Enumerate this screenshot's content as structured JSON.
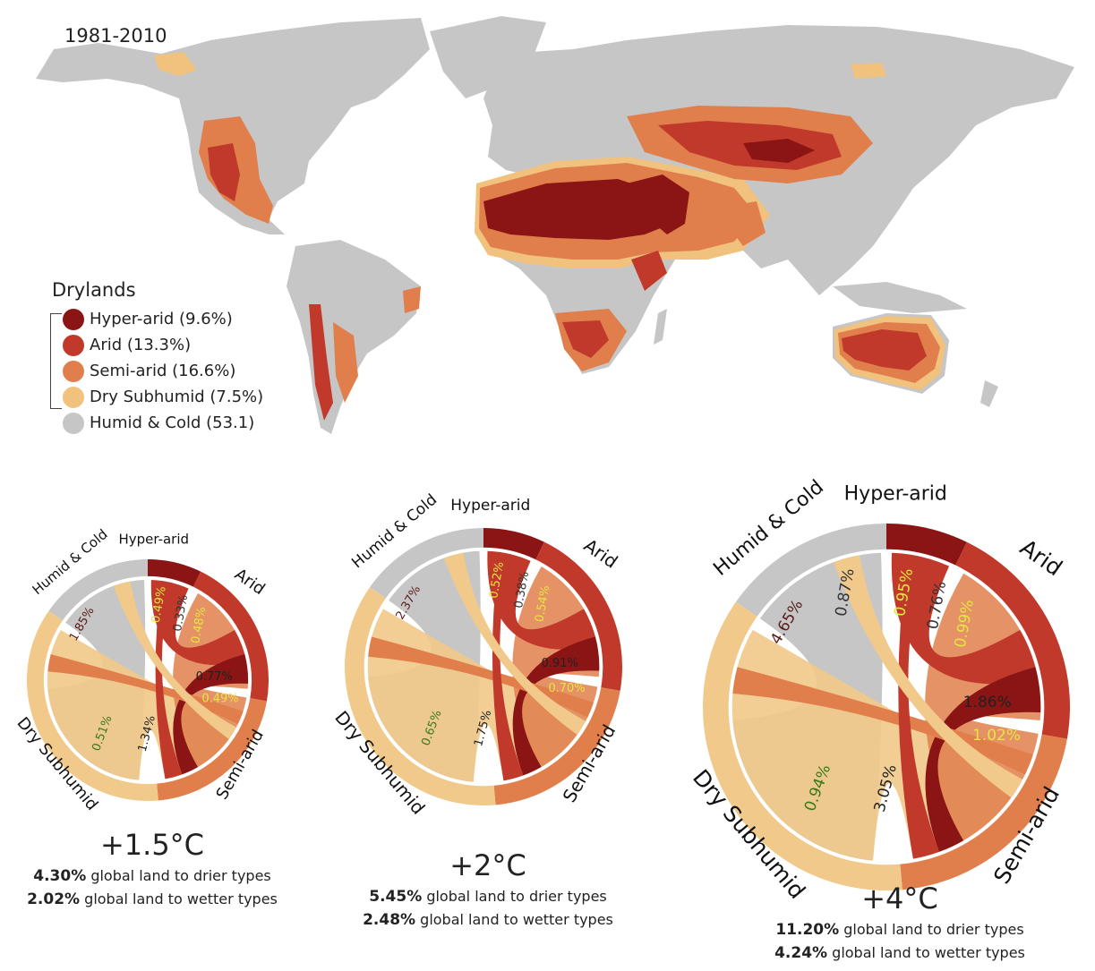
{
  "map": {
    "period": "1981-2010",
    "legend": {
      "title": "Drylands",
      "items": [
        {
          "label": "Hyper-arid (9.6%)",
          "color": "#8b1414"
        },
        {
          "label": "Arid (13.3%)",
          "color": "#c0392b"
        },
        {
          "label": "Semi-arid (16.6%)",
          "color": "#e07f4c"
        },
        {
          "label": "Dry Subhumid (7.5%)",
          "color": "#f1c27d"
        },
        {
          "label": "Humid & Cold (53.1)",
          "color": "#c6c6c6"
        }
      ]
    }
  },
  "colors": {
    "hyper": "#8b1414",
    "arid": "#c0392b",
    "semi": "#e07f4c",
    "dry": "#f1c98a",
    "humid": "#c6c6c6"
  },
  "panels": [
    {
      "segments": {
        "hyper": "Hyper-arid",
        "arid": "Arid",
        "semi": "Semi-arid",
        "dry": "Dry Subhumid",
        "humid": "Humid & Cold"
      },
      "values": [
        "1.85%",
        "0.49%",
        "0.33%",
        "0.48%",
        "0.77%",
        "0.49%",
        "0.51%",
        "1.34%"
      ],
      "temp": "+1.5°C",
      "drier_pct": "4.30%",
      "drier_text": " global land to drier types",
      "wetter_pct": "2.02%",
      "wetter_text": " global land to wetter types"
    },
    {
      "segments": {
        "hyper": "Hyper-arid",
        "arid": "Arid",
        "semi": "Semi-arid",
        "dry": "Dry Subhumid",
        "humid": "Humid & Cold"
      },
      "values": [
        "2.37%",
        "0.52%",
        "0.38%",
        "0.54%",
        "0.91%",
        "0.70%",
        "0.65%",
        "1.75%"
      ],
      "temp": "+2°C",
      "drier_pct": "5.45%",
      "drier_text": " global land to drier types",
      "wetter_pct": "2.48%",
      "wetter_text": " global land to wetter types"
    },
    {
      "segments": {
        "hyper": "Hyper-arid",
        "arid": "Arid",
        "semi": "Semi-arid",
        "dry": "Dry Subhumid",
        "humid": "Humid & Cold"
      },
      "values": [
        "4.65%",
        "0.95%",
        "0.76%",
        "0.99%",
        "1.86%",
        "1.02%",
        "0.94%",
        "3.05%",
        "0.87%"
      ],
      "temp": "+4°C",
      "drier_pct": "11.20%",
      "drier_text": " global land to drier types",
      "wetter_pct": "4.24%",
      "wetter_text": " global land to wetter types"
    }
  ]
}
